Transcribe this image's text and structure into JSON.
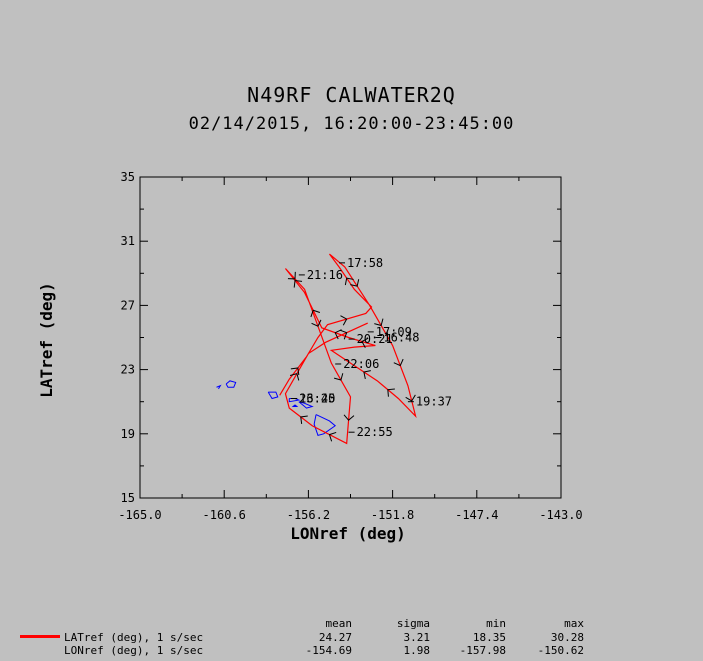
{
  "header": {
    "title": "N49RF CALWATER2Q",
    "subtitle": "02/14/2015, 16:20:00-23:45:00"
  },
  "colors": {
    "background": "#c0c0c0",
    "track": "#ff0000",
    "coastline": "#0000ff"
  },
  "chart_data": {
    "type": "line",
    "xlabel": "LONref (deg)",
    "ylabel": "LATref (deg)",
    "xlim": [
      -165.0,
      -143.0
    ],
    "ylim": [
      15,
      35
    ],
    "x_tick_labels": [
      "-165.0",
      "-160.6",
      "-156.2",
      "-151.8",
      "-147.4",
      "-143.0"
    ],
    "y_tick_labels": [
      "15",
      "19",
      "23",
      "27",
      "31",
      "35"
    ],
    "grid": false,
    "series": [
      {
        "name": "LATref (deg), 1 s/sec",
        "color": "#ff0000",
        "points": [
          [
            -157.7,
            21.4
          ],
          [
            -157.2,
            22.4
          ],
          [
            -156.3,
            23.8
          ],
          [
            -155.7,
            25.0
          ],
          [
            -155.2,
            25.8
          ],
          [
            -153.2,
            26.5
          ],
          [
            -152.9,
            26.9
          ],
          [
            -153.8,
            28.0
          ],
          [
            -154.6,
            29.4
          ],
          [
            -155.1,
            30.2
          ],
          [
            -154.3,
            29.4
          ],
          [
            -153.0,
            27.0
          ],
          [
            -151.8,
            24.5
          ],
          [
            -151.0,
            22.0
          ],
          [
            -150.6,
            20.1
          ],
          [
            -151.5,
            21.2
          ],
          [
            -152.6,
            22.3
          ],
          [
            -154.0,
            23.4
          ],
          [
            -155.0,
            24.2
          ],
          [
            -153.8,
            24.4
          ],
          [
            -152.7,
            24.5
          ],
          [
            -154.1,
            25.0
          ],
          [
            -155.5,
            25.6
          ],
          [
            -156.4,
            27.8
          ],
          [
            -157.4,
            29.3
          ],
          [
            -156.4,
            28.0
          ],
          [
            -155.0,
            23.4
          ],
          [
            -154.0,
            21.3
          ],
          [
            -154.2,
            18.4
          ],
          [
            -156.0,
            19.5
          ],
          [
            -157.2,
            20.6
          ],
          [
            -157.4,
            21.5
          ],
          [
            -156.2,
            24.0
          ],
          [
            -155.3,
            24.7
          ],
          [
            -153.1,
            25.9
          ]
        ]
      }
    ],
    "time_annotations": [
      {
        "label": "17:58",
        "x": -154.6,
        "y": 29.65
      },
      {
        "label": "21:16",
        "x": -156.7,
        "y": 28.9
      },
      {
        "label": "17:09",
        "x": -153.1,
        "y": 25.35
      },
      {
        "label": "20:21",
        "x": -154.1,
        "y": 24.9
      },
      {
        "label": "16:48",
        "x": -152.7,
        "y": 25.0
      },
      {
        "label": "22:06",
        "x": -154.8,
        "y": 23.35
      },
      {
        "label": "19:37",
        "x": -151.0,
        "y": 21.0
      },
      {
        "label": "16:20",
        "x": -157.1,
        "y": 21.2
      },
      {
        "label": "23:45",
        "x": -157.1,
        "y": 21.2
      },
      {
        "label": "22:55",
        "x": -154.1,
        "y": 19.1
      }
    ],
    "coastline_islands": [
      [
        [
          -160.5,
          22.1
        ],
        [
          -160.3,
          22.3
        ],
        [
          -160.0,
          22.2
        ],
        [
          -160.1,
          21.9
        ],
        [
          -160.4,
          21.9
        ],
        [
          -160.5,
          22.1
        ]
      ],
      [
        [
          -161.0,
          21.9
        ],
        [
          -160.8,
          22.0
        ],
        [
          -160.9,
          21.8
        ]
      ],
      [
        [
          -158.3,
          21.6
        ],
        [
          -157.9,
          21.6
        ],
        [
          -157.8,
          21.3
        ],
        [
          -158.1,
          21.2
        ],
        [
          -158.3,
          21.6
        ]
      ],
      [
        [
          -157.2,
          21.2
        ],
        [
          -156.9,
          21.2
        ],
        [
          -156.7,
          21.1
        ],
        [
          -157.2,
          21.0
        ],
        [
          -157.2,
          21.2
        ]
      ],
      [
        [
          -156.7,
          21.0
        ],
        [
          -156.4,
          20.9
        ],
        [
          -156.0,
          20.7
        ],
        [
          -156.3,
          20.6
        ],
        [
          -156.5,
          20.8
        ],
        [
          -156.7,
          21.0
        ]
      ],
      [
        [
          -156.9,
          20.8
        ],
        [
          -156.8,
          20.7
        ],
        [
          -157.0,
          20.7
        ],
        [
          -156.9,
          20.8
        ]
      ],
      [
        [
          -155.8,
          20.2
        ],
        [
          -155.1,
          19.8
        ],
        [
          -154.8,
          19.5
        ],
        [
          -155.4,
          19.0
        ],
        [
          -155.7,
          18.9
        ],
        [
          -155.9,
          19.6
        ],
        [
          -155.8,
          20.2
        ]
      ]
    ]
  },
  "legend": {
    "headers": {
      "mean": "mean",
      "sigma": "sigma",
      "min": "min",
      "max": "max"
    },
    "rows": [
      {
        "label": "LATref (deg), 1 s/sec",
        "mean": "24.27",
        "sigma": "3.21",
        "min": "18.35",
        "max": "30.28"
      },
      {
        "label": "LONref (deg), 1 s/sec",
        "mean": "-154.69",
        "sigma": "1.98",
        "min": "-157.98",
        "max": "-150.62"
      }
    ]
  }
}
